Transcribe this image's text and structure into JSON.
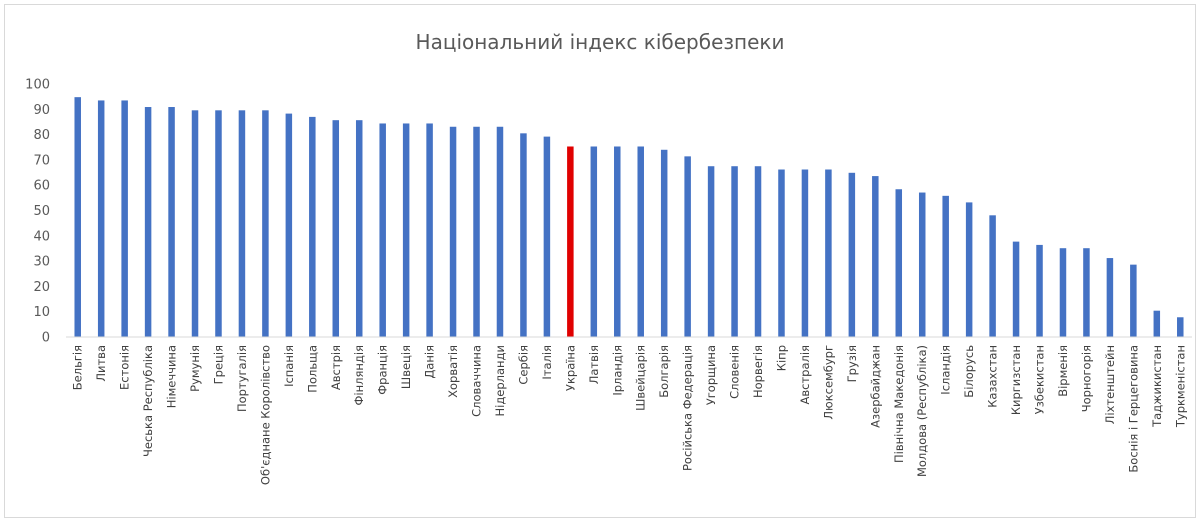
{
  "chart_data": {
    "type": "bar",
    "title": "Національний індекс кібербезпеки",
    "xlabel": "",
    "ylabel": "",
    "ylim": [
      0,
      100
    ],
    "yticks": [
      0,
      10,
      20,
      30,
      40,
      50,
      60,
      70,
      80,
      90,
      100
    ],
    "grid": false,
    "legend": "none",
    "bar_color": "#4472c4",
    "highlight_color": "#e00000",
    "highlight_category": "Україна",
    "categories": [
      "Бельгія",
      "Литва",
      "Естонія",
      "Чеська Республіка",
      "Німеччина",
      "Румунія",
      "Греція",
      "Португалія",
      "Об'єднане Королівство",
      "Іспанія",
      "Польща",
      "Австрія",
      "Фінляндія",
      "Франція",
      "Швеція",
      "Данія",
      "Хорватія",
      "Словаччина",
      "Нідерланди",
      "Сербія",
      "Італія",
      "Україна",
      "Латвія",
      "Ірландія",
      "Швейцарія",
      "Болгарія",
      "Російська Федерація",
      "Угорщина",
      "Словенія",
      "Норвегія",
      "Кіпр",
      "Австралія",
      "Люксембург",
      "Грузія",
      "Азербайджан",
      "Північна Македонія",
      "Молдова (Республіка)",
      "Ісландія",
      "Білорусь",
      "Казахстан",
      "Киргизстан",
      "Узбекистан",
      "Вірменія",
      "Чорногорія",
      "Ліхтенштейн",
      "Боснія і Герцеговина",
      "Таджикистан",
      "Туркменістан"
    ],
    "values": [
      94.8,
      93.5,
      93.5,
      90.9,
      90.9,
      89.6,
      89.6,
      89.6,
      89.6,
      88.3,
      87.0,
      85.7,
      85.7,
      84.4,
      84.4,
      84.4,
      83.1,
      83.1,
      83.1,
      80.5,
      79.2,
      75.3,
      75.3,
      75.3,
      75.3,
      74.0,
      71.4,
      67.5,
      67.5,
      67.5,
      66.2,
      66.2,
      66.2,
      64.9,
      63.6,
      58.4,
      57.1,
      55.8,
      53.2,
      48.1,
      37.7,
      36.4,
      35.1,
      35.1,
      31.2,
      28.6,
      10.4,
      7.8
    ]
  }
}
